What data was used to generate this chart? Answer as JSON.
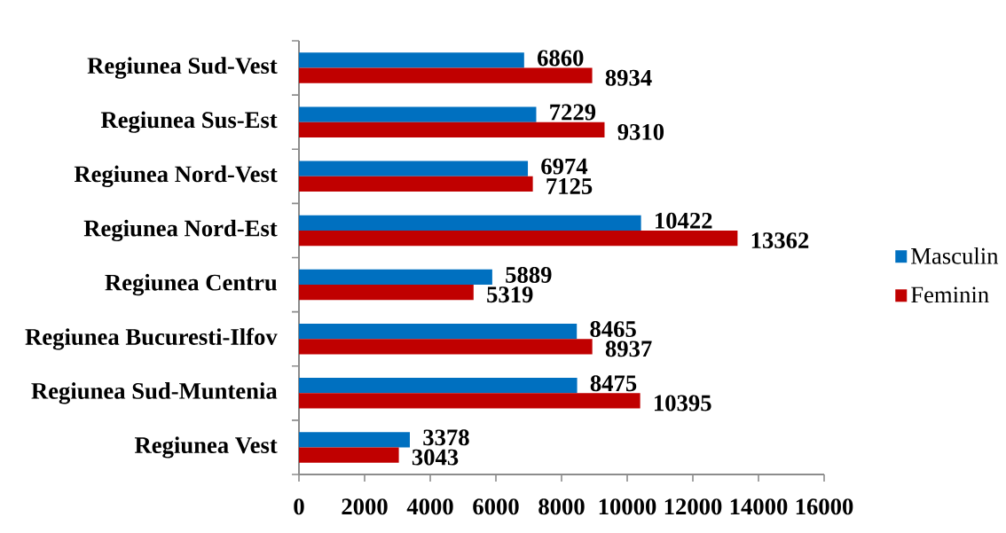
{
  "chart_data": {
    "type": "bar",
    "orientation": "horizontal",
    "categories": [
      "Regiunea Sud-Vest",
      "Regiunea Sus-Est",
      "Regiunea Nord-Vest",
      "Regiunea Nord-Est",
      "Regiunea Centru",
      "Regiunea Bucuresti-Ilfov",
      "Regiunea Sud-Muntenia",
      "Regiunea Vest"
    ],
    "series": [
      {
        "name": "Masculin",
        "color": "#0070c0",
        "values": [
          6860,
          7229,
          6974,
          10422,
          5889,
          8465,
          8475,
          3378
        ]
      },
      {
        "name": "Feminin",
        "color": "#c00000",
        "values": [
          8934,
          9310,
          7125,
          13362,
          5319,
          8937,
          10395,
          3043
        ]
      }
    ],
    "xlim": [
      0,
      16000
    ],
    "xticks": [
      0,
      2000,
      4000,
      6000,
      8000,
      10000,
      12000,
      14000,
      16000
    ],
    "data_labels": true,
    "legend": "right"
  }
}
